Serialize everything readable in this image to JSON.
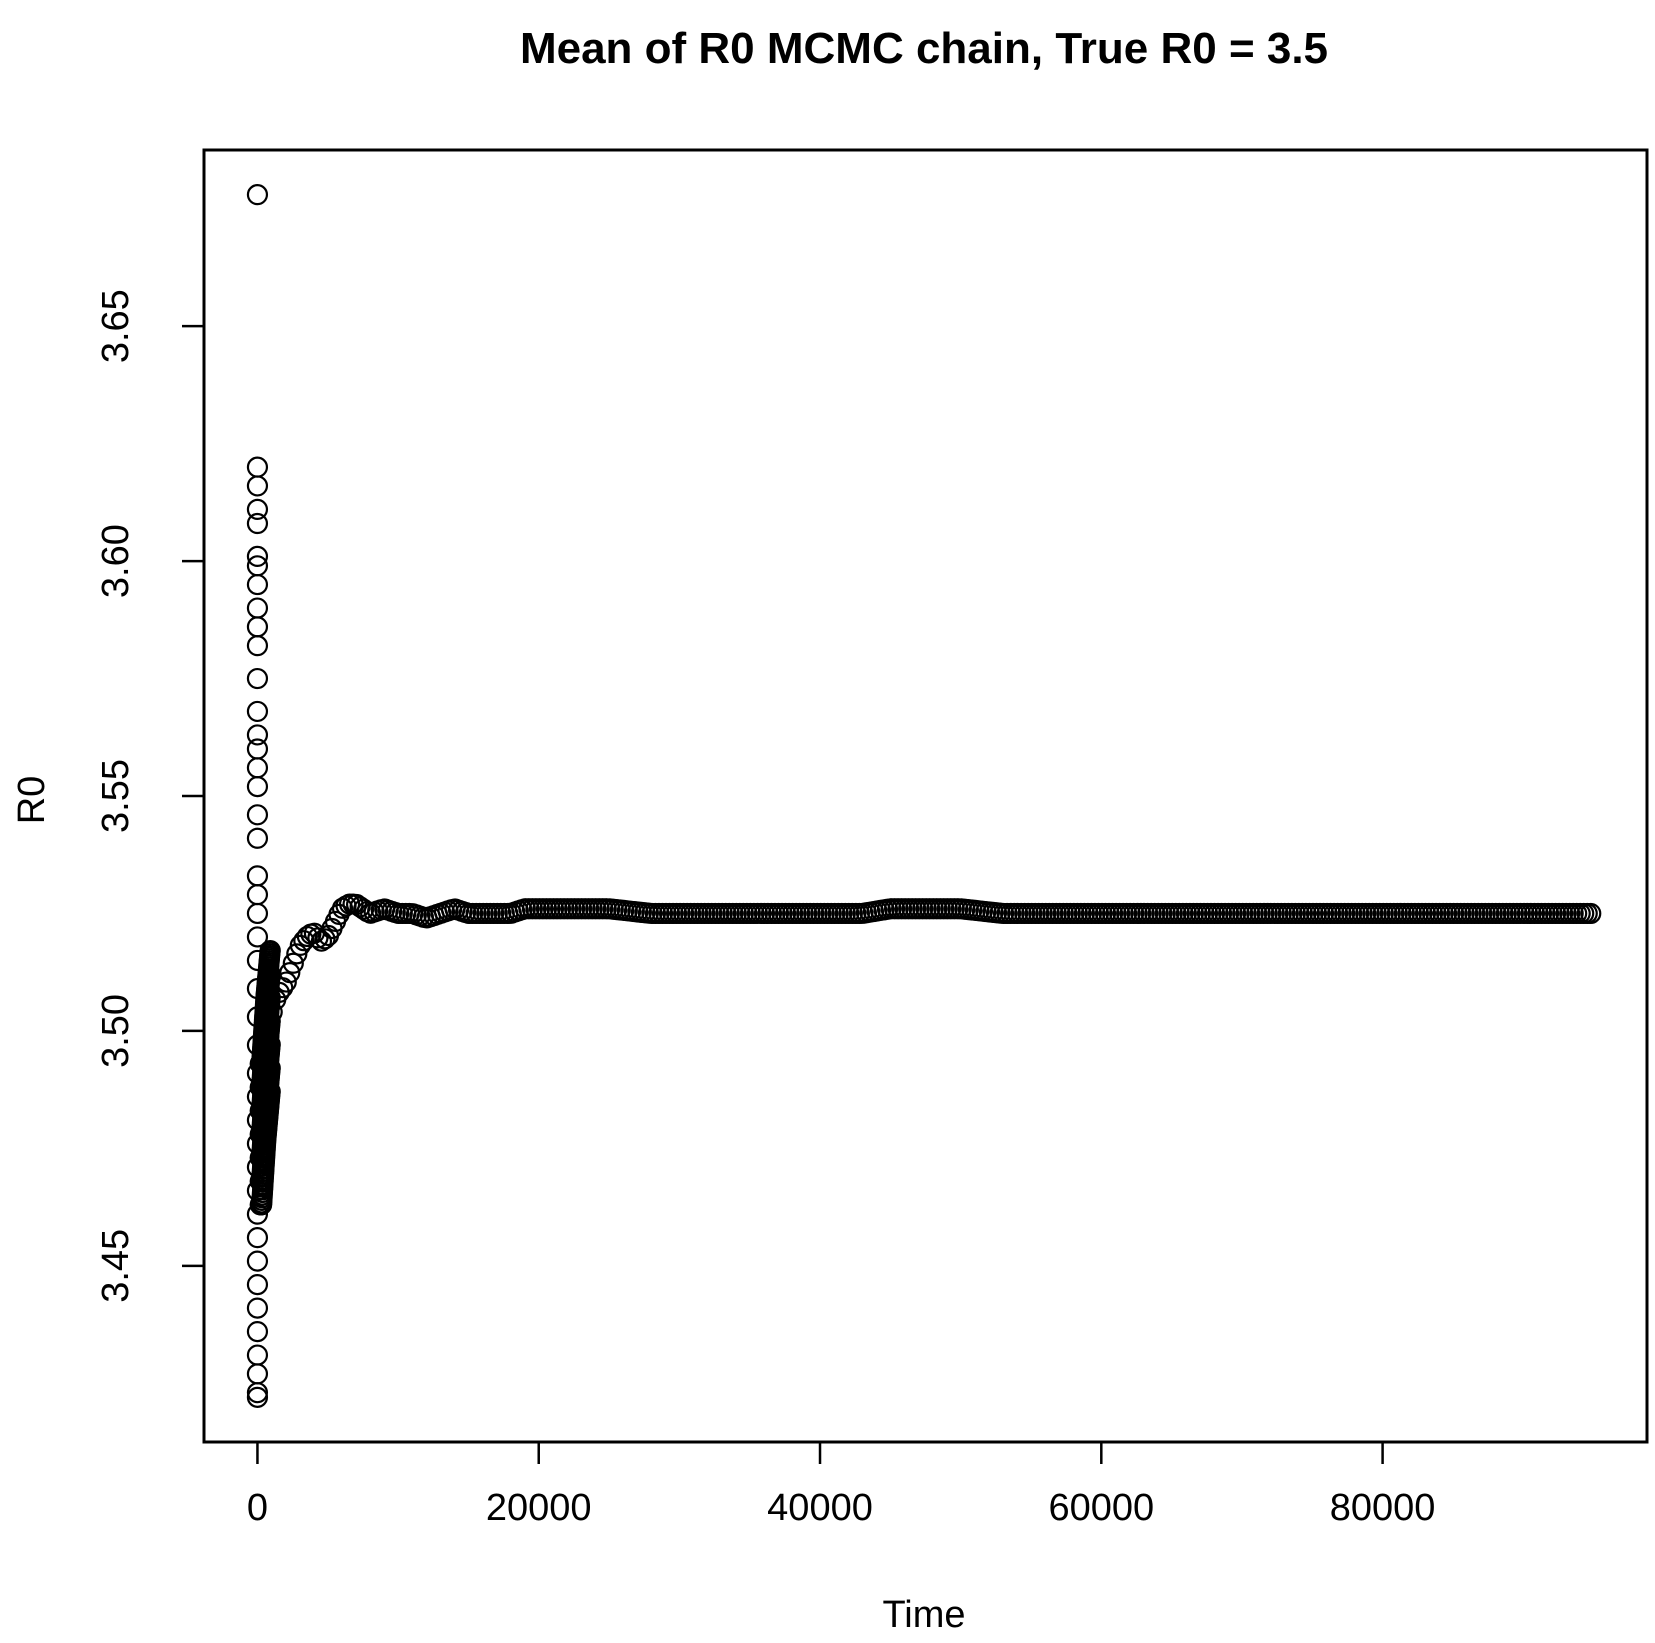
{
  "chart_data": {
    "type": "scatter",
    "title": "Mean of R0 MCMC chain, True R0 =  3.5",
    "xlabel": "Time",
    "ylabel": "R0",
    "xlim": [
      -3800,
      98800
    ],
    "ylim": [
      3.4125,
      3.6875
    ],
    "xticks": [
      0,
      20000,
      40000,
      60000,
      80000
    ],
    "xtick_labels": [
      "0",
      "20000",
      "40000",
      "60000",
      "80000"
    ],
    "yticks": [
      3.45,
      3.5,
      3.55,
      3.6,
      3.65
    ],
    "ytick_labels": [
      "3.45",
      "3.50",
      "3.55",
      "3.60",
      "3.65"
    ],
    "grid": false,
    "legend": "none",
    "marker": "open-circle",
    "color": "#000000",
    "x_range_of_series": [
      0,
      95000
    ],
    "early_points": {
      "x": 0,
      "y": [
        3.678,
        3.62,
        3.616,
        3.611,
        3.608,
        3.601,
        3.599,
        3.595,
        3.59,
        3.586,
        3.582,
        3.575,
        3.568,
        3.563,
        3.56,
        3.556,
        3.552,
        3.546,
        3.541,
        3.533,
        3.529,
        3.525,
        3.52,
        3.515,
        3.509,
        3.503,
        3.497,
        3.491,
        3.486,
        3.481,
        3.476,
        3.471,
        3.466,
        3.461,
        3.456,
        3.451,
        3.446,
        3.441,
        3.436,
        3.431,
        3.427,
        3.423,
        3.422
      ]
    },
    "series": [
      {
        "x": [
          300,
          600,
          900,
          1200,
          1500,
          2000,
          2500,
          3000,
          3500,
          4000,
          4500,
          5000,
          5500,
          6000,
          6500,
          7000,
          7500,
          8000,
          9000,
          10000,
          11000,
          12000,
          13000,
          14000,
          15000,
          16000,
          17000,
          18000,
          19000,
          20000,
          22000,
          25000,
          28000,
          30000,
          35000,
          40000,
          43000,
          45000,
          50000,
          53000,
          55000,
          58000,
          60000,
          65000,
          70000,
          75000,
          80000,
          85000,
          90000,
          95000
        ],
        "y": [
          3.478,
          3.492,
          3.502,
          3.506,
          3.508,
          3.51,
          3.514,
          3.518,
          3.52,
          3.521,
          3.519,
          3.52,
          3.523,
          3.526,
          3.527,
          3.527,
          3.526,
          3.525,
          3.526,
          3.525,
          3.525,
          3.524,
          3.525,
          3.526,
          3.525,
          3.525,
          3.525,
          3.525,
          3.526,
          3.526,
          3.526,
          3.526,
          3.525,
          3.525,
          3.525,
          3.525,
          3.525,
          3.526,
          3.526,
          3.525,
          3.525,
          3.525,
          3.525,
          3.525,
          3.525,
          3.525,
          3.525,
          3.525,
          3.525,
          3.525
        ]
      }
    ]
  }
}
